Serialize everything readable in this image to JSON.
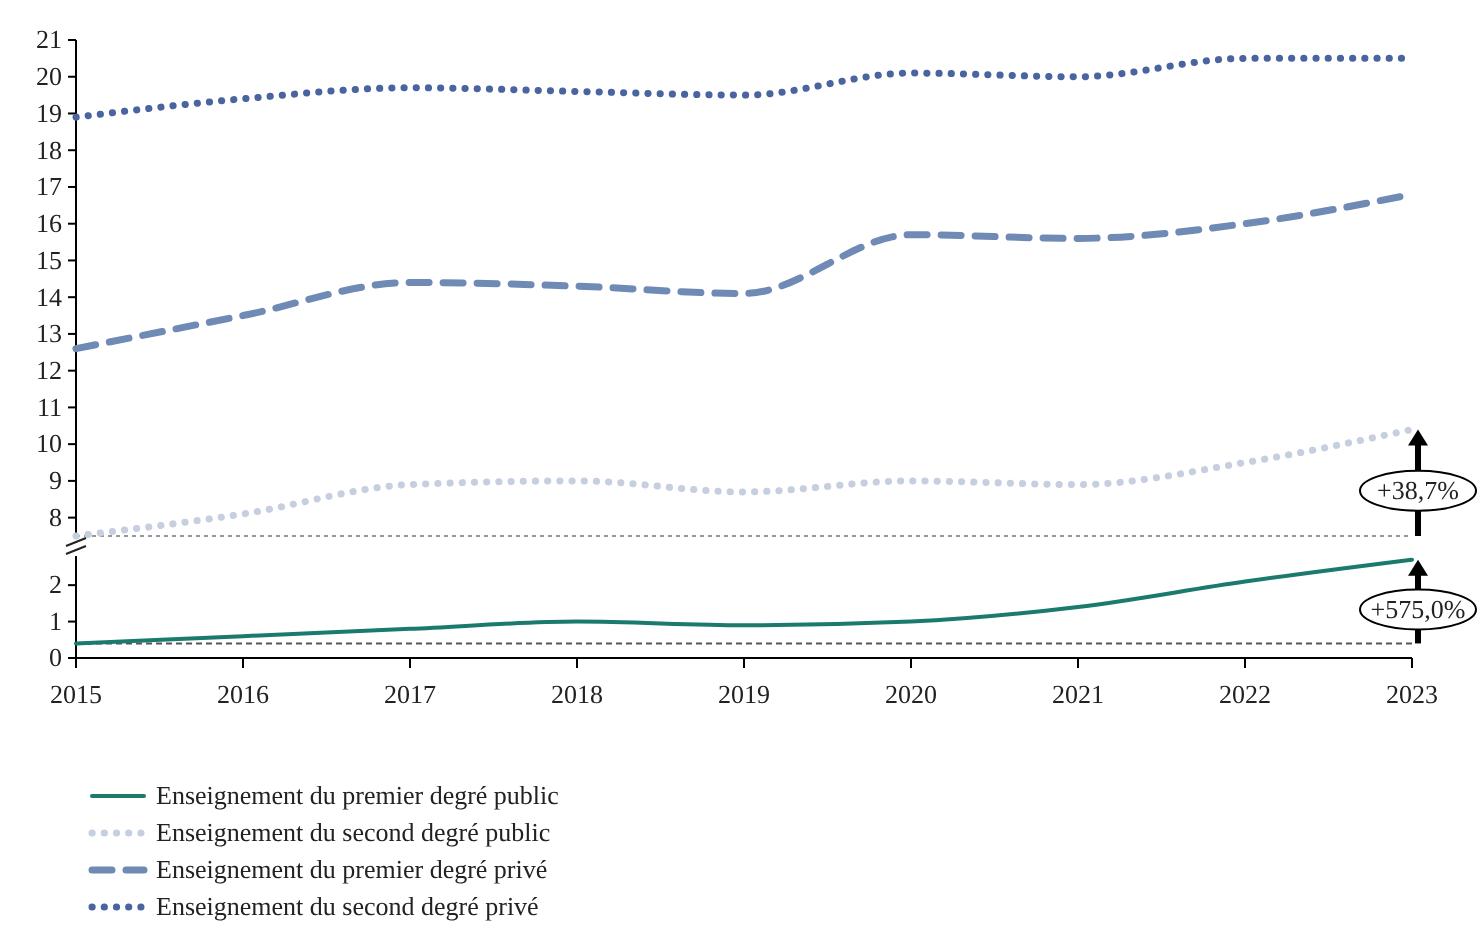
{
  "chart_data": [
    {
      "type": "line",
      "x": [
        2015,
        2016,
        2017,
        2018,
        2019,
        2020,
        2021,
        2022,
        2023
      ],
      "xlim": [
        2015,
        2023
      ],
      "ylim": [
        7.5,
        21
      ],
      "yticks": [
        8,
        9,
        10,
        11,
        12,
        13,
        14,
        15,
        16,
        17,
        18,
        19,
        20,
        21
      ],
      "tick_labels": "y",
      "grid": false,
      "legend": "bottom",
      "marker": "none",
      "series": [
        {
          "name": "Enseignement du second degré public",
          "color": "#c5cfe0",
          "line_style": "dotted",
          "values": [
            7.5,
            8.1,
            8.9,
            9.0,
            8.7,
            9.0,
            8.9,
            9.5,
            10.4
          ]
        },
        {
          "name": "Enseignement du premier degré privé",
          "color": "#6f8ab5",
          "line_style": "dashed",
          "values": [
            12.6,
            13.5,
            14.4,
            14.3,
            14.1,
            15.7,
            15.6,
            16.0,
            16.8
          ]
        },
        {
          "name": "Enseignement du second degré privé",
          "color": "#4a64a0",
          "line_style": "dotted",
          "values": [
            18.9,
            19.4,
            19.7,
            19.6,
            19.5,
            20.1,
            20.0,
            20.5,
            20.5
          ]
        }
      ],
      "ref_lines": [
        {
          "axis": "y",
          "value": 7.5,
          "color": "#999999",
          "line_style": "dotted"
        }
      ],
      "annotations": [
        "+38,7%"
      ]
    },
    {
      "type": "line",
      "x": [
        2015,
        2016,
        2017,
        2018,
        2019,
        2020,
        2021,
        2022,
        2023
      ],
      "xlim": [
        2015,
        2023
      ],
      "xticks": [
        2015,
        2016,
        2017,
        2018,
        2019,
        2020,
        2021,
        2022,
        2023
      ],
      "ylim": [
        0,
        2.8
      ],
      "yticks": [
        0,
        1,
        2
      ],
      "grid": false,
      "legend": "bottom",
      "marker": "none",
      "series": [
        {
          "name": "Enseignement du premier degré public",
          "color": "#1a7a6e",
          "line_style": "solid",
          "values": [
            0.4,
            0.6,
            0.8,
            1.0,
            0.9,
            1.0,
            1.4,
            2.1,
            2.7
          ]
        }
      ],
      "ref_lines": [
        {
          "axis": "y",
          "value": 0.4,
          "color": "#555555",
          "line_style": "dashed"
        }
      ],
      "annotations": [
        "+575,0%"
      ]
    }
  ]
}
